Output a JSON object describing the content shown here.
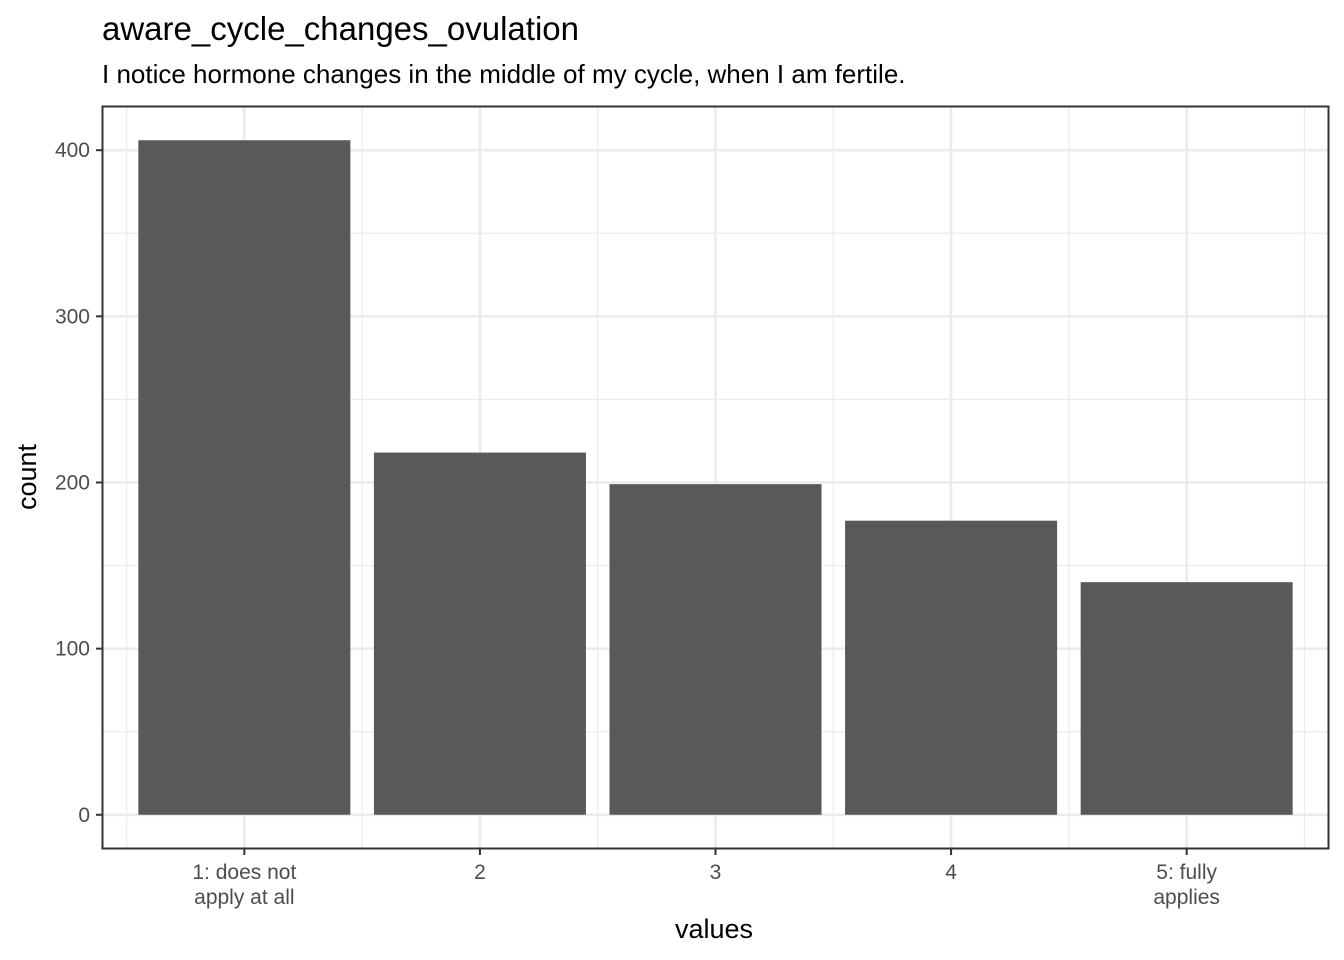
{
  "chart_data": {
    "type": "bar",
    "title": "aware_cycle_changes_ovulation",
    "subtitle": "I notice hormone changes in the middle of my cycle, when I am fertile.",
    "xlabel": "values",
    "ylabel": "count",
    "categories": [
      [
        "1: does not",
        "apply at all"
      ],
      [
        "2"
      ],
      [
        "3"
      ],
      [
        "4"
      ],
      [
        "5: fully",
        "applies"
      ]
    ],
    "values": [
      406,
      218,
      199,
      177,
      140
    ],
    "ylim": [
      -20,
      426
    ],
    "yticks": [
      0,
      100,
      200,
      300,
      400
    ],
    "grid": true,
    "bar_color": "#595959",
    "grid_color": "#ebebeb",
    "panel_border_color": "#333333"
  }
}
